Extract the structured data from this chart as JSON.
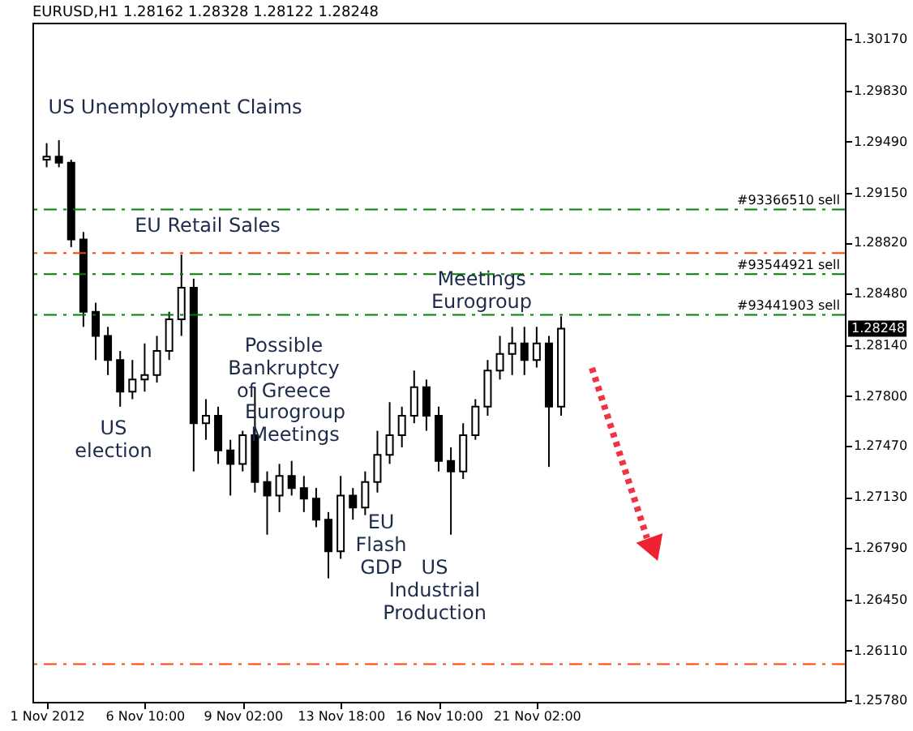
{
  "chart_data": {
    "type": "candlestick",
    "title": "EURUSD,H1  1.28162 1.28328 1.28122 1.28248",
    "color": "#000000",
    "categories": [
      "1 Nov 2012",
      null,
      null,
      null,
      null,
      null,
      null,
      null,
      "6 Nov 10:00",
      null,
      null,
      null,
      null,
      null,
      null,
      null,
      "9 Nov 02:00",
      null,
      null,
      null,
      null,
      null,
      null,
      null,
      "13 Nov 18:00",
      null,
      null,
      null,
      null,
      null,
      null,
      null,
      "16 Nov 10:00",
      null,
      null,
      null,
      null,
      null,
      null,
      null,
      "21 Nov 02:00",
      null,
      null,
      null,
      null,
      null,
      null,
      null,
      null,
      null,
      null,
      null,
      null,
      null,
      null,
      null,
      null,
      null,
      null,
      null,
      null,
      null,
      null,
      null,
      null
    ],
    "ohlc": [
      [
        1.2937,
        1.2948,
        1.2932,
        1.2939
      ],
      [
        1.2939,
        1.295,
        1.2932,
        1.2935
      ],
      [
        1.2935,
        1.2937,
        1.2879,
        1.2884
      ],
      [
        1.2884,
        1.2889,
        1.2826,
        1.2836
      ],
      [
        1.2836,
        1.2842,
        1.2804,
        1.282
      ],
      [
        1.282,
        1.2826,
        1.2794,
        1.2804
      ],
      [
        1.2804,
        1.281,
        1.2773,
        1.2783
      ],
      [
        1.2783,
        1.2804,
        1.2778,
        1.2791
      ],
      [
        1.2791,
        1.2815,
        1.2783,
        1.2794
      ],
      [
        1.2794,
        1.282,
        1.2789,
        1.281
      ],
      [
        1.281,
        1.2836,
        1.2804,
        1.2831
      ],
      [
        1.2831,
        1.2874,
        1.282,
        1.2852
      ],
      [
        1.2852,
        1.2858,
        1.273,
        1.2762
      ],
      [
        1.2762,
        1.2778,
        1.2751,
        1.2767
      ],
      [
        1.2767,
        1.2773,
        1.2735,
        1.2744
      ],
      [
        1.2744,
        1.2751,
        1.2714,
        1.2735
      ],
      [
        1.2735,
        1.2757,
        1.273,
        1.2754
      ],
      [
        1.2754,
        1.2786,
        1.2716,
        1.2723
      ],
      [
        1.2723,
        1.273,
        1.2688,
        1.2714
      ],
      [
        1.2714,
        1.2735,
        1.2703,
        1.2727
      ],
      [
        1.2727,
        1.2737,
        1.2714,
        1.2719
      ],
      [
        1.2719,
        1.2727,
        1.2703,
        1.2712
      ],
      [
        1.2712,
        1.2719,
        1.2693,
        1.2698
      ],
      [
        1.2698,
        1.2703,
        1.2659,
        1.2677
      ],
      [
        1.2677,
        1.2727,
        1.2672,
        1.2714
      ],
      [
        1.2714,
        1.2719,
        1.2698,
        1.2706
      ],
      [
        1.2706,
        1.273,
        1.2701,
        1.2723
      ],
      [
        1.2723,
        1.2757,
        1.2716,
        1.2741
      ],
      [
        1.2741,
        1.2776,
        1.2735,
        1.2754
      ],
      [
        1.2754,
        1.2773,
        1.2746,
        1.2767
      ],
      [
        1.2767,
        1.2797,
        1.2762,
        1.2786
      ],
      [
        1.2786,
        1.2791,
        1.2757,
        1.2767
      ],
      [
        1.2767,
        1.2773,
        1.273,
        1.2737
      ],
      [
        1.2737,
        1.2746,
        1.2688,
        1.273
      ],
      [
        1.273,
        1.2762,
        1.2725,
        1.2754
      ],
      [
        1.2754,
        1.2778,
        1.2751,
        1.2773
      ],
      [
        1.2773,
        1.2804,
        1.2767,
        1.2797
      ],
      [
        1.2797,
        1.282,
        1.2791,
        1.2808
      ],
      [
        1.2808,
        1.2826,
        1.2794,
        1.2815
      ],
      [
        1.2815,
        1.2826,
        1.2794,
        1.2804
      ],
      [
        1.2804,
        1.2826,
        1.2799,
        1.2815
      ],
      [
        1.2815,
        1.282,
        1.2733,
        1.2773
      ],
      [
        1.2773,
        1.2833,
        1.2767,
        1.28248
      ],
      null,
      null,
      null,
      null,
      null,
      null,
      null,
      null,
      null,
      null,
      null,
      null,
      null,
      null,
      null,
      null,
      null,
      null,
      null,
      null,
      null,
      null
    ],
    "ylim": [
      1.2577,
      1.3028
    ],
    "yticks": [
      {
        "value": 1.3017,
        "label": "1.30170"
      },
      {
        "value": 1.2983,
        "label": "1.29830"
      },
      {
        "value": 1.2949,
        "label": "1.29490"
      },
      {
        "value": 1.2915,
        "label": "1.29150"
      },
      {
        "value": 1.2882,
        "label": "1.28820"
      },
      {
        "value": 1.2848,
        "label": "1.28480"
      },
      {
        "value": 1.2814,
        "label": "1.28140"
      },
      {
        "value": 1.278,
        "label": "1.27800"
      },
      {
        "value": 1.2747,
        "label": "1.27470"
      },
      {
        "value": 1.2713,
        "label": "1.27130"
      },
      {
        "value": 1.2679,
        "label": "1.26790"
      },
      {
        "value": 1.2645,
        "label": "1.26450"
      },
      {
        "value": 1.2611,
        "label": "1.26110"
      },
      {
        "value": 1.2578,
        "label": "1.25780"
      }
    ],
    "grid": false,
    "ref_lines": [
      {
        "axis": "y",
        "value": 1.2904,
        "label": "#93366510 sell",
        "color": "#008000",
        "line_style": "dashed"
      },
      {
        "axis": "y",
        "value": 1.2875,
        "label": null,
        "color": "#ff4500",
        "line_style": "dashed"
      },
      {
        "axis": "y",
        "value": 1.2861,
        "label": "#93544921 sell",
        "color": "#008000",
        "line_style": "dashed"
      },
      {
        "axis": "y",
        "value": 1.2834,
        "label": "#93441903 sell",
        "color": "#008000",
        "line_style": "dashed"
      },
      {
        "axis": "y",
        "value": 1.2602,
        "label": null,
        "color": "#ff4500",
        "line_style": "dashed"
      }
    ],
    "annotations": [
      "US Unemployment Claims",
      "EU Retail Sales",
      "Possible\nBankruptcy\nof Greece",
      "US\nelection",
      "Eurogroup\nMeetings",
      "EU\nFlash\nGDP",
      "US\nIndustrial\nProduction",
      "Meetings\nEurogroup",
      "1.28248"
    ]
  }
}
